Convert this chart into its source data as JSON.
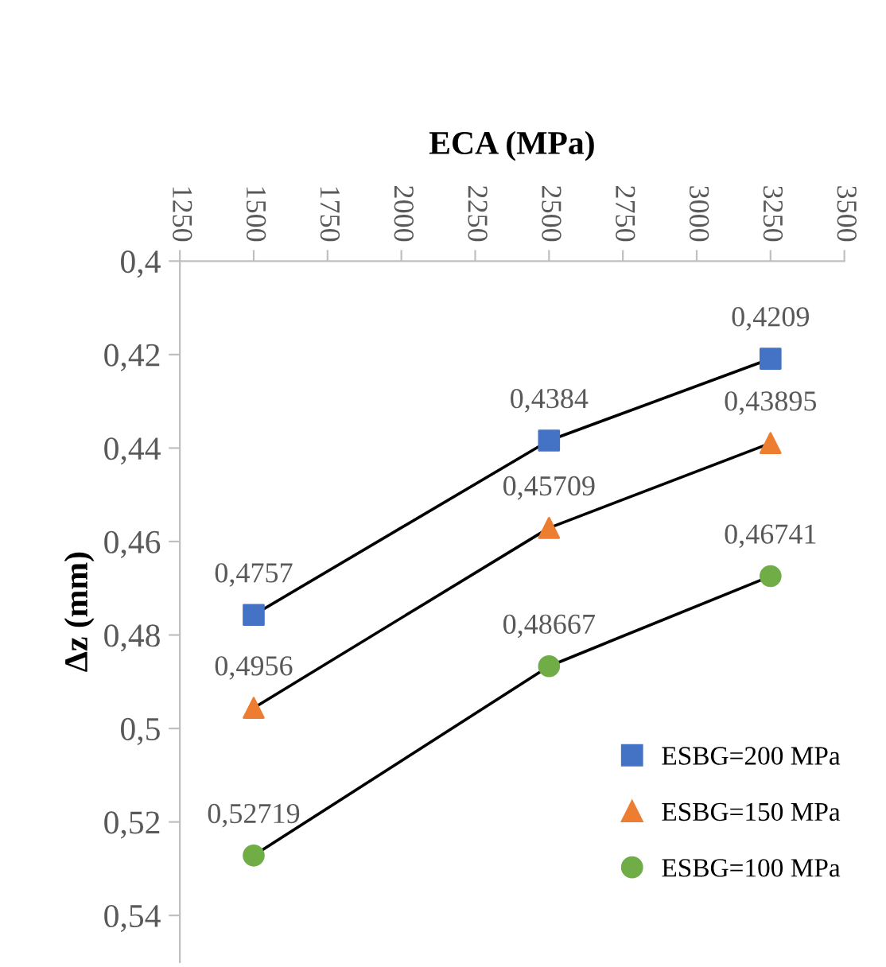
{
  "chart_data": {
    "type": "line",
    "xlabel": "ECA (MPa)",
    "ylabel": "Δz (mm)",
    "xlim": [
      1250,
      3500
    ],
    "xticks": [
      1250,
      1500,
      1750,
      2000,
      2250,
      2500,
      2750,
      3000,
      3250,
      3500
    ],
    "ylim": [
      0.55,
      0.4
    ],
    "yticks": [
      {
        "value": 0.4,
        "label": "0,4"
      },
      {
        "value": 0.42,
        "label": "0,42"
      },
      {
        "value": 0.44,
        "label": "0,44"
      },
      {
        "value": 0.46,
        "label": "0,46"
      },
      {
        "value": 0.48,
        "label": "0,48"
      },
      {
        "value": 0.5,
        "label": "0,5"
      },
      {
        "value": 0.52,
        "label": "0,52"
      },
      {
        "value": 0.54,
        "label": "0,54"
      }
    ],
    "x": [
      1500,
      2500,
      3250
    ],
    "series": [
      {
        "name": "ESBG=200 MPa",
        "color": "#000000",
        "colors": [
          "#4472c4",
          "#4472c4",
          "#4472c4"
        ],
        "marker": "square",
        "values": [
          0.4757,
          0.4384,
          0.4209
        ],
        "value_labels": [
          "0,4757",
          "0,4384",
          "0,4209"
        ]
      },
      {
        "name": "ESBG=150 MPa",
        "color": "#000000",
        "colors": [
          "#ed7d31",
          "#ed7d31",
          "#ed7d31"
        ],
        "marker": "triangle",
        "values": [
          0.4956,
          0.45709,
          0.43895
        ],
        "value_labels": [
          "0,4956",
          "0,45709",
          "0,43895"
        ]
      },
      {
        "name": "ESBG=100 MPa",
        "color": "#000000",
        "colors": [
          "#70ad47",
          "#70ad47",
          "#70ad47"
        ],
        "marker": "circle",
        "values": [
          0.52719,
          0.48667,
          0.46741
        ],
        "value_labels": [
          "0,52719",
          "0,48667",
          "0,46741"
        ]
      }
    ],
    "grid": false,
    "legend": "lower right",
    "line_style": "solid"
  }
}
